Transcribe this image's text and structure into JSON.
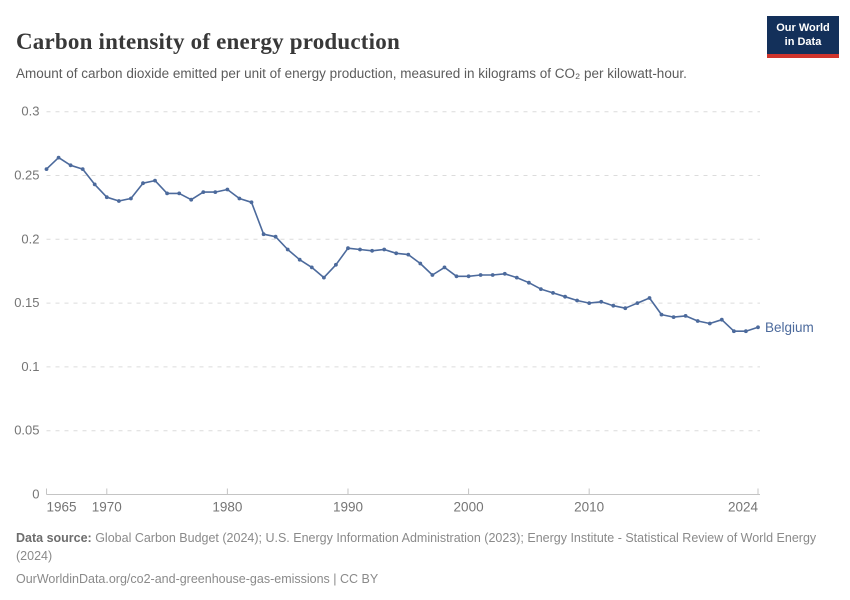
{
  "header": {
    "title": "Carbon intensity of energy production",
    "subtitle": "Amount of carbon dioxide emitted per unit of energy production, measured in kilograms of CO₂ per kilowatt-hour."
  },
  "logo": {
    "line1": "Our World",
    "line2": "in Data",
    "bg_color": "#13305a",
    "accent_color": "#cf342c"
  },
  "chart_data": {
    "type": "line",
    "title": "Carbon intensity of energy production",
    "xlabel": "",
    "ylabel": "",
    "unit": "kilograms of CO2 per kilowatt-hour",
    "xlim": [
      1965,
      2024
    ],
    "ylim": [
      0,
      0.3
    ],
    "x_ticks": [
      1965,
      1970,
      1980,
      1990,
      2000,
      2010,
      2024
    ],
    "y_ticks": [
      0,
      0.05,
      0.1,
      0.15,
      0.2,
      0.25,
      0.3
    ],
    "grid": "horizontal-dashed",
    "legend_position": "end-of-line",
    "axis_color": "#c4c4c4",
    "grid_color": "#dcdcdc",
    "tick_label_color": "#757575",
    "series": [
      {
        "name": "Belgium",
        "color": "#4c6a9c",
        "x": [
          1965,
          1966,
          1967,
          1968,
          1969,
          1970,
          1971,
          1972,
          1973,
          1974,
          1975,
          1976,
          1977,
          1978,
          1979,
          1980,
          1981,
          1982,
          1983,
          1984,
          1985,
          1986,
          1987,
          1988,
          1989,
          1990,
          1991,
          1992,
          1993,
          1994,
          1995,
          1996,
          1997,
          1998,
          1999,
          2000,
          2001,
          2002,
          2003,
          2004,
          2005,
          2006,
          2007,
          2008,
          2009,
          2010,
          2011,
          2012,
          2013,
          2014,
          2015,
          2016,
          2017,
          2018,
          2019,
          2020,
          2021,
          2022,
          2023,
          2024
        ],
        "values": [
          0.255,
          0.264,
          0.258,
          0.255,
          0.243,
          0.233,
          0.23,
          0.232,
          0.244,
          0.246,
          0.236,
          0.236,
          0.231,
          0.237,
          0.237,
          0.239,
          0.232,
          0.229,
          0.204,
          0.202,
          0.192,
          0.184,
          0.178,
          0.17,
          0.18,
          0.193,
          0.192,
          0.191,
          0.192,
          0.189,
          0.188,
          0.181,
          0.172,
          0.178,
          0.171,
          0.171,
          0.172,
          0.172,
          0.173,
          0.17,
          0.166,
          0.161,
          0.158,
          0.155,
          0.152,
          0.15,
          0.151,
          0.148,
          0.146,
          0.15,
          0.154,
          0.141,
          0.139,
          0.14,
          0.136,
          0.134,
          0.137,
          0.128,
          0.128,
          0.131
        ]
      }
    ]
  },
  "footer": {
    "source_label": "Data source:",
    "sources": " Global Carbon Budget (2024); U.S. Energy Information Administration (2023); Energy Institute - Statistical Review of World Energy (2024)",
    "link_line": "OurWorldinData.org/co2-and-greenhouse-gas-emissions | CC BY"
  }
}
